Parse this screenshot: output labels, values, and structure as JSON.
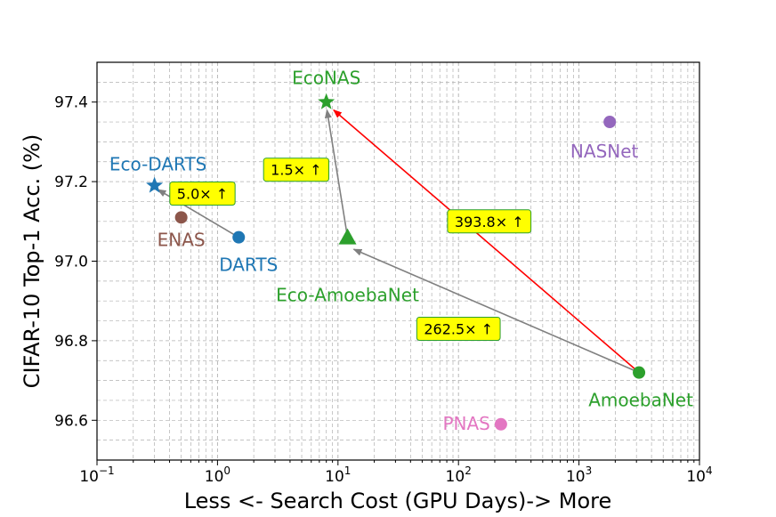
{
  "chart_data": {
    "type": "scatter",
    "xscale": "log",
    "xlim": [
      0.1,
      10000
    ],
    "ylim": [
      96.5,
      97.5
    ],
    "xticks": [
      0.1,
      1,
      10,
      100,
      1000,
      10000
    ],
    "xtick_labels": [
      {
        "base": "10",
        "exp": "−1"
      },
      {
        "base": "10",
        "exp": "0"
      },
      {
        "base": "10",
        "exp": "1"
      },
      {
        "base": "10",
        "exp": "2"
      },
      {
        "base": "10",
        "exp": "3"
      },
      {
        "base": "10",
        "exp": "4"
      }
    ],
    "yticks": [
      96.6,
      96.8,
      97.0,
      97.2,
      97.4
    ],
    "ytick_labels": [
      "96.6",
      "96.8",
      "97.0",
      "97.2",
      "97.4"
    ],
    "xlabel": "Less <- Search Cost (GPU Days)-> More",
    "ylabel": "CIFAR-10 Top-1 Acc. (%)",
    "grid": true,
    "points": [
      {
        "name": "EcoNAS",
        "label": "EcoNAS",
        "x": 8,
        "y": 97.4,
        "marker": "star",
        "color": "#2ca02c",
        "label_pos": "above"
      },
      {
        "name": "Eco-DARTS",
        "label": "Eco-DARTS",
        "x": 0.3,
        "y": 97.19,
        "marker": "star",
        "color": "#1f77b4",
        "label_pos": "above"
      },
      {
        "name": "ENAS",
        "label": "ENAS",
        "x": 0.5,
        "y": 97.11,
        "marker": "circle",
        "color": "#8c564b",
        "label_pos": "below"
      },
      {
        "name": "DARTS",
        "label": "DARTS",
        "x": 1.5,
        "y": 97.06,
        "marker": "circle",
        "color": "#1f77b4",
        "label_pos": "below"
      },
      {
        "name": "Eco-AmoebaNet",
        "label": "Eco-AmoebaNet",
        "x": 12,
        "y": 97.06,
        "marker": "triangle",
        "color": "#2ca02c",
        "label_pos": "below"
      },
      {
        "name": "NASNet",
        "label": "NASNet",
        "x": 1800,
        "y": 97.35,
        "marker": "circle",
        "color": "#9467bd",
        "label_pos": "below"
      },
      {
        "name": "AmoebaNet",
        "label": "AmoebaNet",
        "x": 3150,
        "y": 96.72,
        "marker": "circle",
        "color": "#2ca02c",
        "label_pos": "below"
      },
      {
        "name": "PNAS",
        "label": "PNAS",
        "x": 225,
        "y": 96.59,
        "marker": "circle",
        "color": "#e377c2",
        "label_pos": "left"
      }
    ],
    "arrows": [
      {
        "from": [
          1.5,
          97.06
        ],
        "to": [
          0.32,
          97.18
        ],
        "color": "#808080"
      },
      {
        "from": [
          12,
          97.06
        ],
        "to": [
          8.1,
          97.38
        ],
        "color": "#808080"
      },
      {
        "from": [
          3150,
          96.72
        ],
        "to": [
          13.5,
          97.03
        ],
        "color": "#808080"
      },
      {
        "from": [
          3150,
          96.72
        ],
        "to": [
          9.2,
          97.38
        ],
        "color": "#ff0000"
      }
    ],
    "annotations": [
      {
        "text": "5.0× ↑",
        "x": 0.75,
        "y": 97.17
      },
      {
        "text": "1.5× ↑",
        "x": 4.5,
        "y": 97.23
      },
      {
        "text": "393.8× ↑",
        "x": 180,
        "y": 97.1
      },
      {
        "text": "262.5× ↑",
        "x": 100,
        "y": 96.83
      }
    ]
  }
}
